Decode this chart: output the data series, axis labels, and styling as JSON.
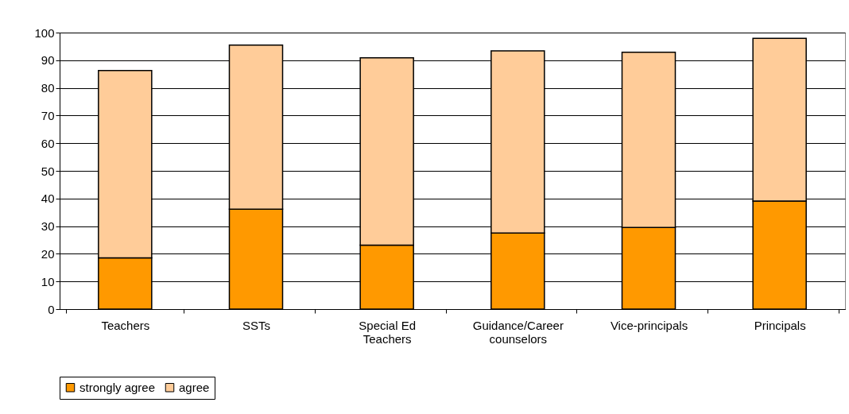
{
  "chart_data": {
    "type": "bar",
    "stacked": true,
    "categories": [
      "Teachers",
      "SSTs",
      "Special Ed Teachers",
      "Guidance/Career counselors",
      "Vice-principals",
      "Principals"
    ],
    "series": [
      {
        "name": "strongly agree",
        "color": "#ff9900",
        "values": [
          18.5,
          36.1,
          23.1,
          27.5,
          29.5,
          39.1
        ]
      },
      {
        "name": "agree",
        "color": "#ffcc99",
        "values": [
          67.8,
          59.4,
          67.8,
          65.9,
          63.4,
          58.8
        ]
      }
    ],
    "ylim": [
      0,
      100
    ],
    "yticks": [
      0,
      10,
      20,
      30,
      40,
      50,
      60,
      70,
      80,
      90,
      100
    ],
    "grid": "y",
    "legend": "bottom"
  }
}
